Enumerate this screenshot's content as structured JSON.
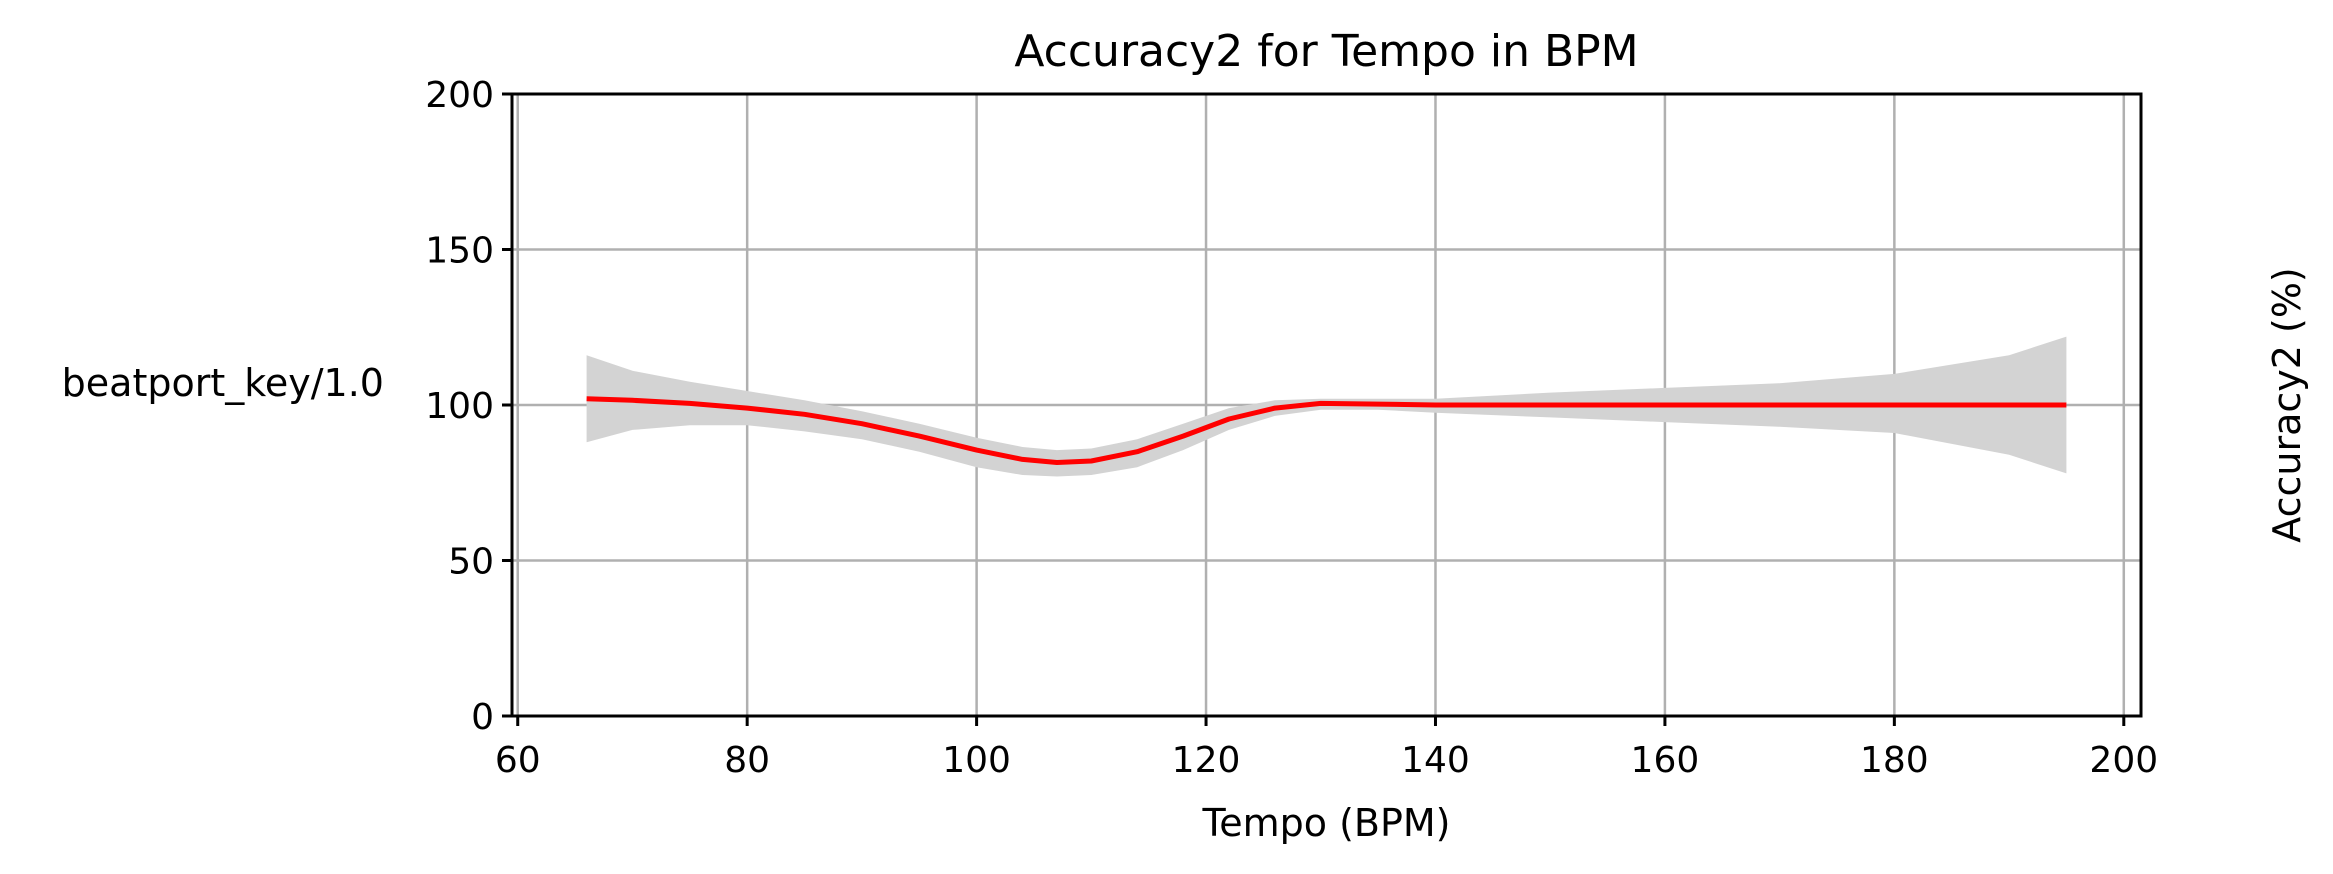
{
  "chart_data": {
    "type": "line",
    "title": "Accuracy2 for Tempo in BPM",
    "xlabel": "Tempo (BPM)",
    "ylabel": "Accuracy2 (%)",
    "row_label": "beatport_key/1.0",
    "xlim": [
      59.5,
      201.5
    ],
    "ylim": [
      0,
      200
    ],
    "xticks": [
      60,
      80,
      100,
      120,
      140,
      160,
      180,
      200
    ],
    "yticks": [
      0,
      50,
      100,
      150,
      200
    ],
    "grid": true,
    "colors": {
      "line": "#ff0000",
      "band": "#d3d3d3",
      "grid": "#b0b0b0"
    },
    "series": [
      {
        "x": [
          66,
          70,
          75,
          80,
          85,
          90,
          95,
          100,
          104,
          107,
          110,
          114,
          118,
          122,
          126,
          130,
          135,
          140,
          150,
          160,
          170,
          180,
          190,
          195
        ],
        "y": [
          102,
          101.5,
          100.5,
          99,
          97,
          94,
          90,
          85.5,
          82.5,
          81.5,
          82,
          85,
          90,
          95.5,
          99,
          100.5,
          100.3,
          100,
          100,
          100,
          100,
          100,
          100,
          100
        ],
        "lower": [
          88,
          92,
          93.5,
          93.5,
          91.5,
          89,
          85,
          80,
          77.5,
          77,
          77.5,
          80,
          85.5,
          92,
          96.5,
          98.5,
          98.5,
          97.5,
          96,
          94.5,
          93,
          91,
          84,
          78
        ],
        "upper": [
          116,
          111,
          107.5,
          104.5,
          101.5,
          98,
          94,
          89.5,
          86.5,
          85.5,
          86,
          89,
          94,
          99,
          101.5,
          102,
          102,
          102,
          104,
          105.5,
          107,
          110,
          116,
          122
        ]
      }
    ]
  }
}
